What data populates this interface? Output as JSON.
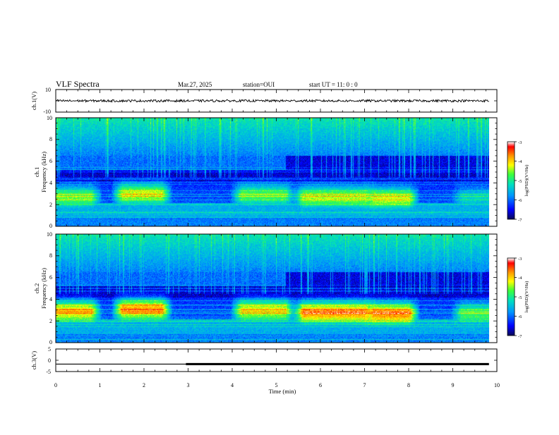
{
  "header": {
    "title": "VLF Spectra",
    "date": "Mar.27, 2025",
    "station": "station=OUI",
    "start_time": "start  UT =   11: 0  : 0"
  },
  "colors": {
    "ramp": [
      "#0a0a5a",
      "#0000ff",
      "#0096ff",
      "#00e0c0",
      "#3cff3c",
      "#ffff00",
      "#ff9600",
      "#ff0000",
      "#ffffff"
    ],
    "background": "#08084a",
    "trace": "#000000"
  },
  "chart_data": [
    {
      "type": "line",
      "name_label": "ch.1(V)",
      "ylim": [
        -10,
        10
      ],
      "yticks": [
        "10",
        "-10"
      ],
      "xlim": [
        0,
        10
      ],
      "baseline": 0.0,
      "noise_amplitude": 1.0
    },
    {
      "type": "heatmap",
      "ylabel": "ch.1\nFrequency (kHz)",
      "yticks": [
        "0",
        "2",
        "4",
        "6",
        "8",
        "10"
      ],
      "ylim": [
        0,
        10
      ],
      "xlim": [
        0,
        10
      ],
      "colorbar": {
        "label": "log(PSD)(V²/Hz)",
        "ticks": [
          "-3",
          "-4",
          "-5",
          "-6",
          "-7"
        ],
        "range": [
          -7,
          -3
        ]
      },
      "chorus_bursts": [
        {
          "t_start": 0.0,
          "t_end": 0.8,
          "f_center": 2.7,
          "intensity": -4.6
        },
        {
          "t_start": 1.5,
          "t_end": 2.4,
          "f_center": 3.0,
          "intensity": -4.3
        },
        {
          "t_start": 4.2,
          "t_end": 5.2,
          "f_center": 2.9,
          "intensity": -4.7
        },
        {
          "t_start": 5.6,
          "t_end": 7.0,
          "f_center": 2.7,
          "intensity": -4.4
        },
        {
          "t_start": 7.2,
          "t_end": 8.0,
          "f_center": 2.6,
          "intensity": -4.3
        },
        {
          "t_start": 9.2,
          "t_end": 9.8,
          "f_center": 2.6,
          "intensity": -5.3
        }
      ]
    },
    {
      "type": "heatmap",
      "ylabel": "ch.2\nFrequency (kHz)",
      "yticks": [
        "0",
        "2",
        "4",
        "6",
        "8",
        "10"
      ],
      "ylim": [
        0,
        10
      ],
      "xlim": [
        0,
        10
      ],
      "colorbar": {
        "label": "log(PSD)(V²/Hz)",
        "ticks": [
          "-3",
          "-4",
          "-5",
          "-6",
          "-7"
        ],
        "range": [
          -7,
          -3
        ]
      },
      "chorus_bursts": [
        {
          "t_start": 0.0,
          "t_end": 0.8,
          "f_center": 2.9,
          "intensity": -4.2
        },
        {
          "t_start": 1.5,
          "t_end": 2.4,
          "f_center": 3.1,
          "intensity": -4.0
        },
        {
          "t_start": 4.2,
          "t_end": 5.2,
          "f_center": 3.0,
          "intensity": -4.4
        },
        {
          "t_start": 5.6,
          "t_end": 7.0,
          "f_center": 2.8,
          "intensity": -3.9
        },
        {
          "t_start": 7.2,
          "t_end": 8.0,
          "f_center": 2.7,
          "intensity": -3.9
        },
        {
          "t_start": 9.2,
          "t_end": 9.8,
          "f_center": 2.7,
          "intensity": -5.0
        }
      ]
    },
    {
      "type": "line",
      "name_label": "ch.3(V)",
      "ylim": [
        -5,
        5
      ],
      "yticks": [
        "5",
        "0",
        "-5"
      ],
      "xlim": [
        0,
        10
      ],
      "xlabel": "Time (min)",
      "xticks": [
        "0",
        "1",
        "2",
        "3",
        "4",
        "5",
        "6",
        "7",
        "8",
        "9",
        "10"
      ],
      "level": -1.7,
      "thick_from": 2.95
    }
  ]
}
